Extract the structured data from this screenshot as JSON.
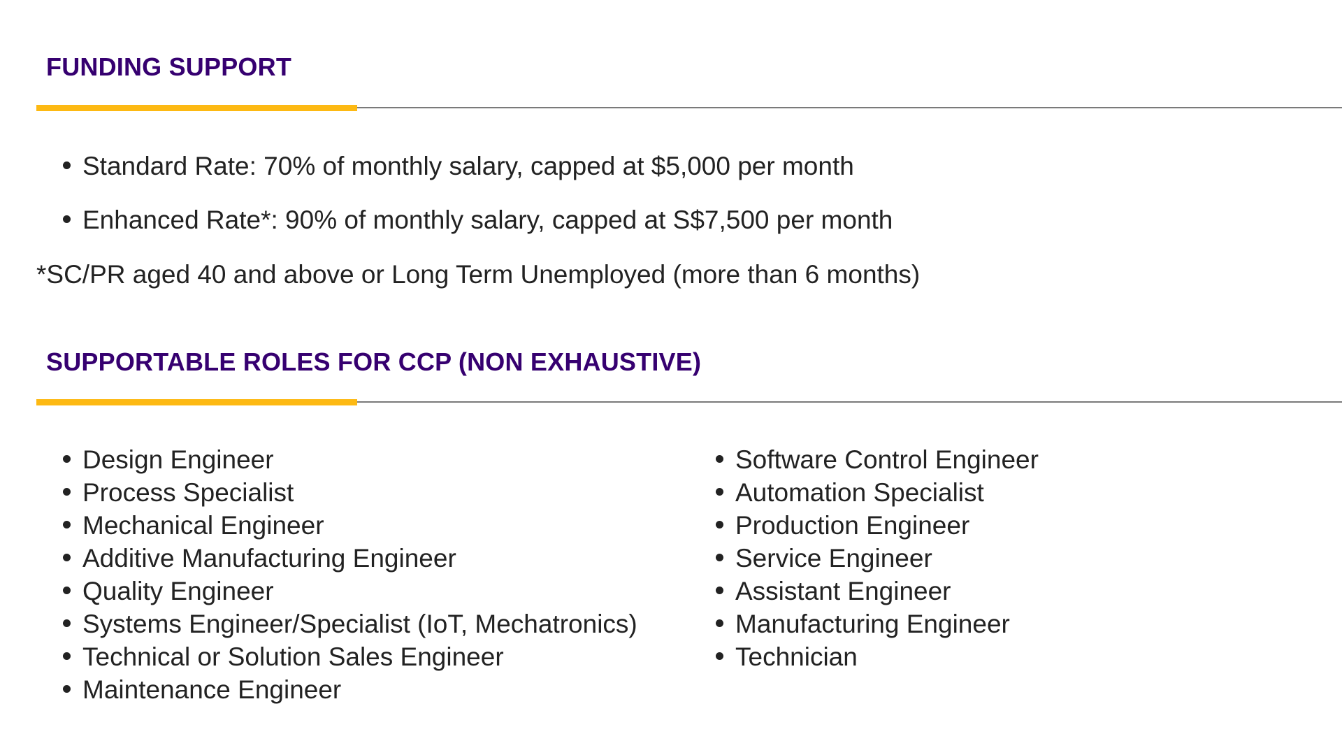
{
  "funding": {
    "title": "FUNDING SUPPORT",
    "items": [
      "Standard Rate: 70% of monthly salary, capped at $5,000 per month",
      "Enhanced Rate*: 90% of monthly salary, capped at S$7,500 per month"
    ],
    "footnote": "*SC/PR aged 40 and above or Long Term Unemployed (more than 6 months)"
  },
  "roles": {
    "title": "SUPPORTABLE ROLES FOR CCP (NON EXHAUSTIVE)",
    "left": [
      "Design Engineer",
      "Process Specialist",
      "Mechanical Engineer",
      "Additive Manufacturing Engineer",
      "Quality Engineer",
      "Systems Engineer/Specialist (IoT, Mechatronics)",
      "Technical or Solution Sales Engineer",
      "Maintenance Engineer"
    ],
    "right": [
      "Software Control Engineer",
      "Automation Specialist",
      "Production Engineer",
      "Service Engineer",
      "Assistant Engineer",
      "Manufacturing Engineer",
      "Technician"
    ]
  },
  "colors": {
    "heading": "#360070",
    "accent_bar": "#fdb913",
    "rule": "#7a7a7a"
  }
}
